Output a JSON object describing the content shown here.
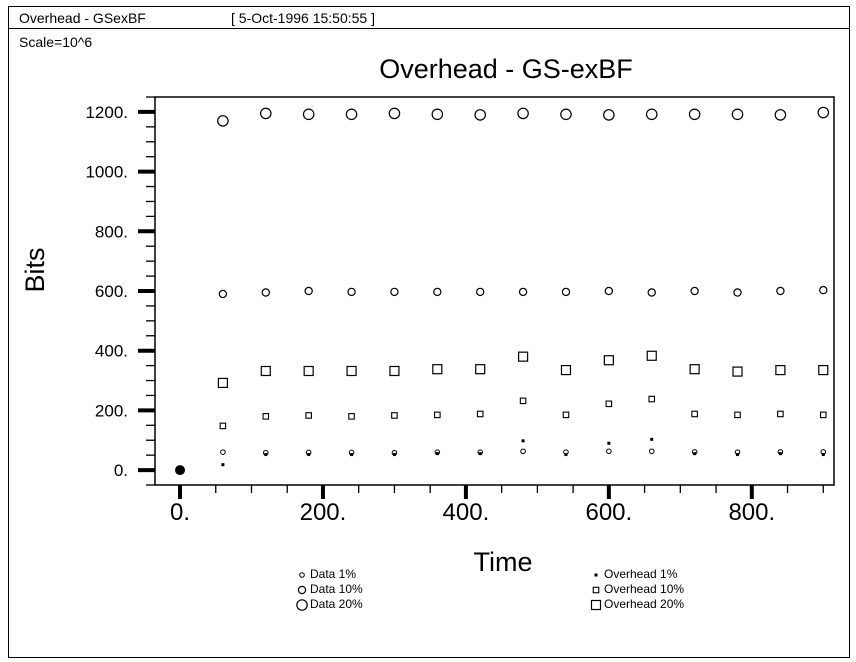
{
  "window": {
    "title": "Overhead - GSexBF",
    "timestamp": "[ 5-Oct-1996 15:50:55 ]",
    "scale": "Scale=10^6"
  },
  "chart_data": {
    "type": "scatter",
    "title": "Overhead - GS-exBF",
    "xlabel": "Time",
    "ylabel": "Bits",
    "xlim": [
      -35,
      915
    ],
    "ylim": [
      -50,
      1250
    ],
    "x_ticks": [
      "0.",
      "200.",
      "400.",
      "600.",
      "800."
    ],
    "x_tick_values": [
      0,
      200,
      400,
      600,
      800
    ],
    "y_ticks": [
      "0.",
      "200.",
      "400.",
      "600.",
      "800.",
      "1000.",
      "1200."
    ],
    "y_tick_values": [
      0,
      200,
      400,
      600,
      800,
      1000,
      1200
    ],
    "grid": false,
    "series": [
      {
        "name": "Data 1%",
        "marker": "circle-small",
        "x": [
          0,
          60,
          120,
          180,
          240,
          300,
          360,
          420,
          480,
          540,
          600,
          660,
          720,
          780,
          840,
          900
        ],
        "y": [
          0,
          60,
          58,
          59,
          59,
          58,
          60,
          60,
          63,
          60,
          63,
          63,
          61,
          60,
          61,
          61
        ]
      },
      {
        "name": "Data 10%",
        "marker": "circle-medium",
        "x": [
          60,
          120,
          180,
          240,
          300,
          360,
          420,
          480,
          540,
          600,
          660,
          720,
          780,
          840,
          900
        ],
        "y": [
          590,
          595,
          600,
          597,
          597,
          597,
          597,
          597,
          597,
          600,
          595,
          600,
          595,
          600,
          603
        ]
      },
      {
        "name": "Data 20%",
        "marker": "circle-large",
        "x": [
          60,
          120,
          180,
          240,
          300,
          360,
          420,
          480,
          540,
          600,
          660,
          720,
          780,
          840,
          900
        ],
        "y": [
          1170,
          1195,
          1192,
          1192,
          1195,
          1192,
          1190,
          1195,
          1192,
          1190,
          1192,
          1192,
          1192,
          1190,
          1198
        ]
      },
      {
        "name": "Overhead 1%",
        "marker": "square-small",
        "x": [
          60,
          120,
          180,
          240,
          300,
          360,
          420,
          480,
          540,
          600,
          660,
          720,
          780,
          840,
          900
        ],
        "y": [
          18,
          52,
          52,
          52,
          52,
          55,
          55,
          98,
          52,
          90,
          103,
          55,
          52,
          55,
          52
        ]
      },
      {
        "name": "Overhead 10%",
        "marker": "square-medium",
        "x": [
          60,
          120,
          180,
          240,
          300,
          360,
          420,
          480,
          540,
          600,
          660,
          720,
          780,
          840,
          900
        ],
        "y": [
          148,
          180,
          183,
          180,
          183,
          185,
          188,
          232,
          185,
          222,
          238,
          188,
          185,
          188,
          185
        ]
      },
      {
        "name": "Overhead 20%",
        "marker": "square-large",
        "x": [
          60,
          120,
          180,
          240,
          300,
          360,
          420,
          480,
          540,
          600,
          660,
          720,
          780,
          840,
          900
        ],
        "y": [
          292,
          332,
          332,
          332,
          332,
          338,
          338,
          380,
          335,
          368,
          383,
          338,
          330,
          335,
          335
        ]
      }
    ],
    "legend": {
      "left": [
        "Data 1%",
        "Data 10%",
        "Data 20%"
      ],
      "right": [
        "Overhead 1%",
        "Overhead 10%",
        "Overhead 20%"
      ],
      "placement": "bottom"
    }
  }
}
